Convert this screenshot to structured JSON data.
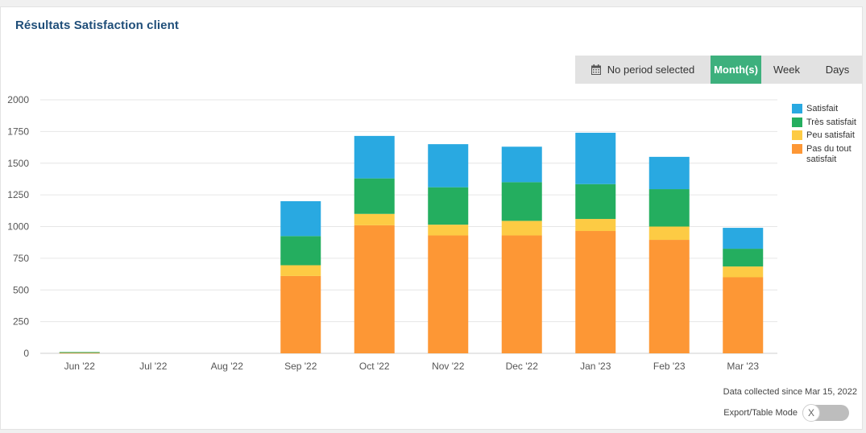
{
  "header": {
    "title": "Résultats Satisfaction client"
  },
  "period": {
    "none_label": "No period selected",
    "month_label": "Month(s)",
    "week_label": "Week",
    "days_label": "Days",
    "active": "month"
  },
  "chart_data": {
    "type": "bar",
    "stacked": true,
    "categories": [
      "Jun '22",
      "Jul '22",
      "Aug '22",
      "Sep '22",
      "Oct '22",
      "Nov '22",
      "Dec '22",
      "Jan '23",
      "Feb '23",
      "Mar '23"
    ],
    "series": [
      {
        "name": "Pas du tout satisfait",
        "color": "#fd9735",
        "values": [
          5,
          0,
          0,
          610,
          1010,
          930,
          930,
          965,
          895,
          600
        ]
      },
      {
        "name": "Peu satisfait",
        "color": "#fdcb44",
        "values": [
          0,
          0,
          0,
          85,
          90,
          85,
          115,
          95,
          105,
          85
        ]
      },
      {
        "name": "Très satisfait",
        "color": "#24ae5f",
        "values": [
          5,
          0,
          0,
          230,
          280,
          295,
          305,
          275,
          295,
          140
        ]
      },
      {
        "name": "Satisfait",
        "color": "#29a9e1",
        "values": [
          0,
          0,
          0,
          275,
          335,
          340,
          280,
          405,
          255,
          165
        ]
      }
    ],
    "legend_order": [
      "Satisfait",
      "Très satisfait",
      "Peu satisfait",
      "Pas du tout satisfait"
    ],
    "yticks": [
      0,
      250,
      500,
      750,
      1000,
      1250,
      1500,
      1750,
      2000
    ],
    "ylim": [
      0,
      2000
    ],
    "grid": true,
    "legend_position": "right",
    "title": "",
    "xlabel": "",
    "ylabel": ""
  },
  "footer": {
    "note": "Data collected since Mar 15, 2022",
    "export_label": "Export/Table Mode",
    "toggle_glyph": "X"
  },
  "icons": {
    "calendar": "calendar-icon"
  }
}
